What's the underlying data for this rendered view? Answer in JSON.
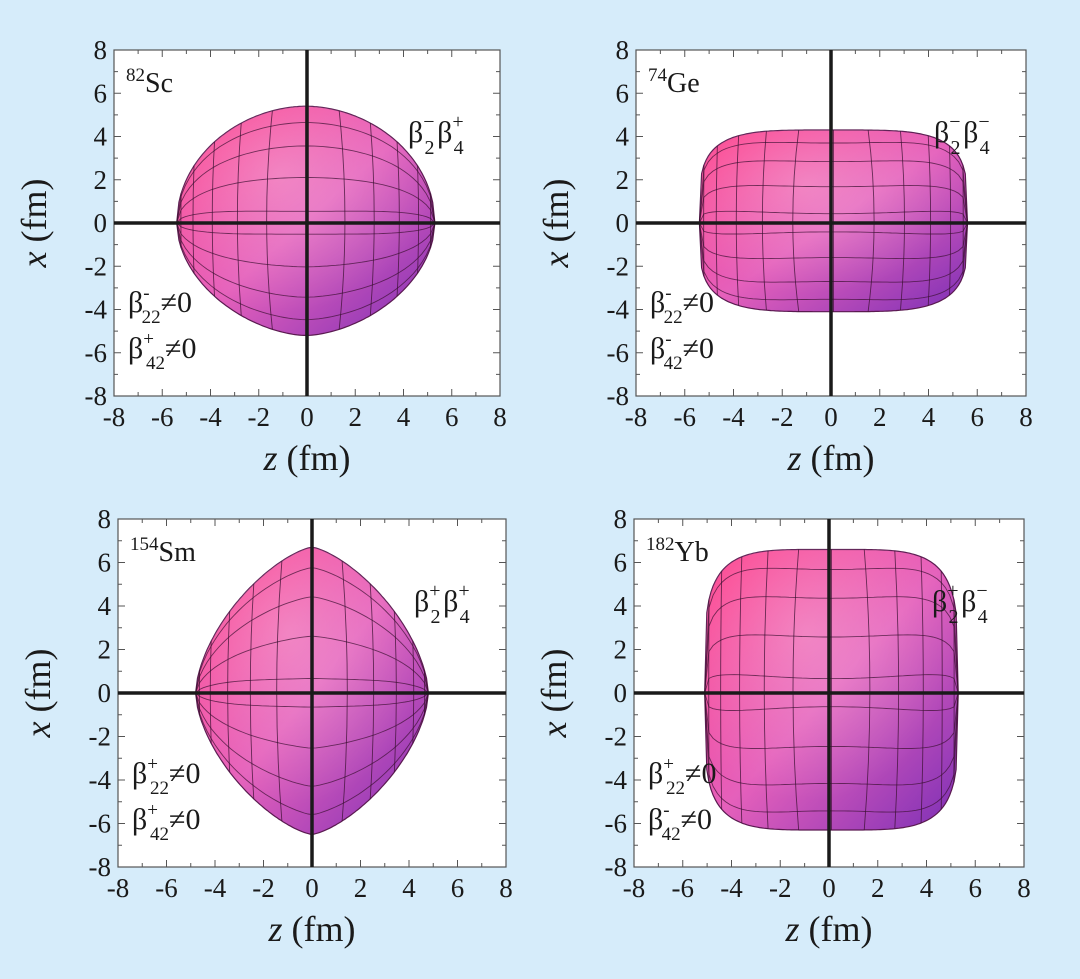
{
  "chart_data": [
    {
      "type": "scatter",
      "nucleus_mass": "82",
      "nucleus_symbol": "Sc",
      "deformation_label": {
        "base": "β",
        "parts": [
          [
            "2",
            "−"
          ],
          [
            "4",
            "+"
          ]
        ]
      },
      "conditions": [
        {
          "base": "β",
          "sub": "22",
          "sup": "-",
          "rest": "≠0"
        },
        {
          "base": "β",
          "sub": "42",
          "sup": "+",
          "rest": "≠0"
        }
      ],
      "xlabel": "z (fm)",
      "ylabel": "x (fm)",
      "xlim": [
        -8,
        8
      ],
      "ylim": [
        -8,
        8
      ],
      "ticks": [
        "-8",
        "-6",
        "-4",
        "-2",
        "0",
        "2",
        "4",
        "6",
        "8"
      ],
      "shape": {
        "left": -5.4,
        "right": 5.3,
        "top": 5.4,
        "bottom": -5.2,
        "top_exp": 1.9,
        "bottom_exp": 1.7,
        "top_width": 0.95,
        "bottom_width": 0.9
      }
    },
    {
      "type": "scatter",
      "nucleus_mass": "74",
      "nucleus_symbol": "Ge",
      "deformation_label": {
        "base": "β",
        "parts": [
          [
            "2",
            "−"
          ],
          [
            "4",
            "−"
          ]
        ]
      },
      "conditions": [
        {
          "base": "β",
          "sub": "22",
          "sup": "-",
          "rest": "≠0"
        },
        {
          "base": "β",
          "sub": "42",
          "sup": "-",
          "rest": "≠0"
        }
      ],
      "xlabel": "z (fm)",
      "ylabel": "x (fm)",
      "xlim": [
        -8,
        8
      ],
      "ylim": [
        -8,
        8
      ],
      "ticks": [
        "-8",
        "-6",
        "-4",
        "-2",
        "0",
        "2",
        "4",
        "6",
        "8"
      ],
      "shape": {
        "left": -5.4,
        "right": 5.6,
        "top": 4.3,
        "bottom": -4.1,
        "top_exp": 4.2,
        "bottom_exp": 4.0,
        "top_width": 1.0,
        "bottom_width": 1.0
      }
    },
    {
      "type": "scatter",
      "nucleus_mass": "154",
      "nucleus_symbol": "Sm",
      "deformation_label": {
        "base": "β",
        "parts": [
          [
            "2",
            "+"
          ],
          [
            "4",
            "+"
          ]
        ]
      },
      "conditions": [
        {
          "base": "β",
          "sub": "22",
          "sup": "+",
          "rest": "≠0"
        },
        {
          "base": "β",
          "sub": "42",
          "sup": "+",
          "rest": "≠0"
        }
      ],
      "xlabel": "z (fm)",
      "ylabel": "x (fm)",
      "xlim": [
        -8,
        8
      ],
      "ylim": [
        -8,
        8
      ],
      "ticks": [
        "-8",
        "-6",
        "-4",
        "-2",
        "0",
        "2",
        "4",
        "6",
        "8"
      ],
      "shape": {
        "left": -4.8,
        "right": 4.8,
        "top": 6.7,
        "bottom": -6.5,
        "top_exp": 1.4,
        "bottom_exp": 1.4,
        "top_width": 0.85,
        "bottom_width": 0.85
      }
    },
    {
      "type": "scatter",
      "nucleus_mass": "182",
      "nucleus_symbol": "Yb",
      "deformation_label": {
        "base": "β",
        "parts": [
          [
            "2",
            "+"
          ],
          [
            "4",
            "−"
          ]
        ]
      },
      "conditions": [
        {
          "base": "β",
          "sub": "22",
          "sup": "+",
          "rest": "≠0"
        },
        {
          "base": "β",
          "sub": "42",
          "sup": "-",
          "rest": "≠0"
        }
      ],
      "xlabel": "z (fm)",
      "ylabel": "x (fm)",
      "xlim": [
        -8,
        8
      ],
      "ylim": [
        -8,
        8
      ],
      "ticks": [
        "-8",
        "-6",
        "-4",
        "-2",
        "0",
        "2",
        "4",
        "6",
        "8"
      ],
      "shape": {
        "left": -5.1,
        "right": 5.3,
        "top": 6.6,
        "bottom": -6.3,
        "top_exp": 4.5,
        "bottom_exp": 4.5,
        "top_width": 1.0,
        "bottom_width": 1.0
      }
    }
  ],
  "colors": {
    "surface_light": "#ff3c87",
    "surface_mid": "#e560bb",
    "surface_dark": "#7c2fb6",
    "background": "#d6ecfa",
    "axis": "#1a1a1a"
  }
}
